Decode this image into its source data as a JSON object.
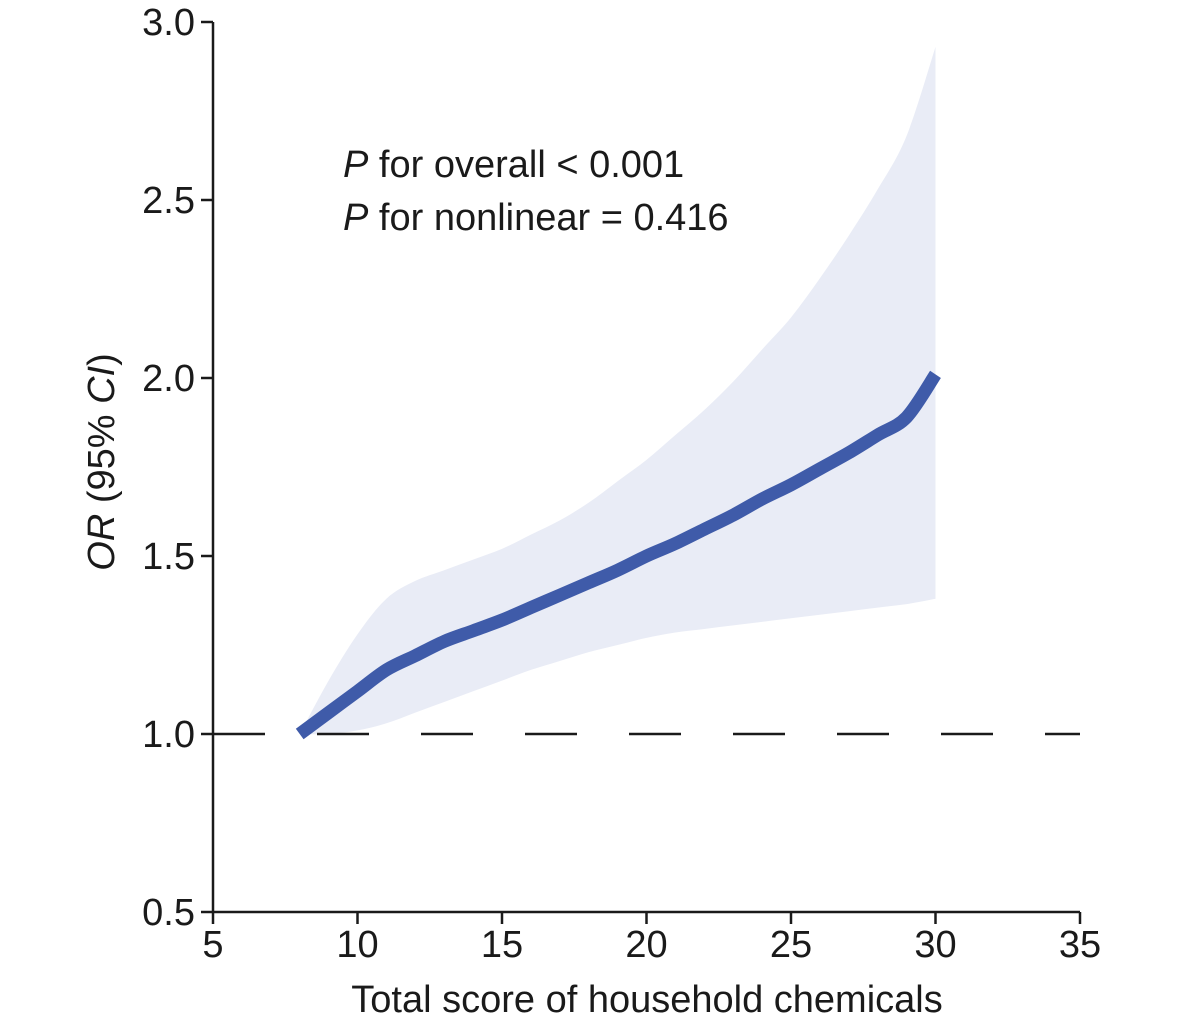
{
  "chart_data": {
    "type": "line",
    "xlabel": "Total score of household chemicals",
    "ylabel": "OR (95% CI)",
    "ylabel_parts": {
      "or": "OR",
      "mid": " (95% ",
      "ci": "CI",
      "end": ")"
    },
    "xlim": [
      5,
      35
    ],
    "ylim": [
      0.5,
      3.0
    ],
    "xticks": [
      5,
      10,
      15,
      20,
      25,
      30,
      35
    ],
    "xtick_labels": [
      "5",
      "10",
      "15",
      "20",
      "25",
      "30",
      "35"
    ],
    "yticks": [
      0.5,
      1.0,
      1.5,
      2.0,
      2.5,
      3.0
    ],
    "ytick_labels": [
      "0.5",
      "1.0",
      "1.5",
      "2.0",
      "2.5",
      "3.0"
    ],
    "reference_line": {
      "y": 1.0,
      "style": "dashed"
    },
    "annotations": [
      {
        "italic": "P",
        "rest": " for overall < 0.001"
      },
      {
        "italic": "P",
        "rest": " for nonlinear = 0.416"
      }
    ],
    "series": [
      {
        "x": [
          8,
          9,
          10,
          11,
          12,
          13,
          14,
          15,
          16,
          17,
          18,
          19,
          20,
          21,
          22,
          23,
          24,
          25,
          26,
          27,
          28,
          29,
          30
        ],
        "y": [
          1.0,
          1.06,
          1.12,
          1.18,
          1.22,
          1.26,
          1.29,
          1.32,
          1.355,
          1.39,
          1.425,
          1.46,
          1.5,
          1.535,
          1.575,
          1.615,
          1.66,
          1.7,
          1.745,
          1.79,
          1.84,
          1.89,
          2.01
        ],
        "ci_lower": [
          1.0,
          1.0,
          1.01,
          1.03,
          1.06,
          1.09,
          1.12,
          1.15,
          1.18,
          1.205,
          1.23,
          1.25,
          1.27,
          1.285,
          1.295,
          1.305,
          1.315,
          1.325,
          1.335,
          1.345,
          1.355,
          1.365,
          1.38
        ],
        "ci_upper": [
          1.0,
          1.15,
          1.28,
          1.38,
          1.43,
          1.46,
          1.49,
          1.52,
          1.56,
          1.6,
          1.65,
          1.71,
          1.77,
          1.84,
          1.91,
          1.99,
          2.08,
          2.17,
          2.28,
          2.4,
          2.53,
          2.68,
          2.93
        ]
      }
    ],
    "colors": {
      "line": "#3f5ba9",
      "band": "#e9ecf6",
      "axis": "#1a1a1a"
    },
    "grid": false,
    "legend": "none"
  }
}
